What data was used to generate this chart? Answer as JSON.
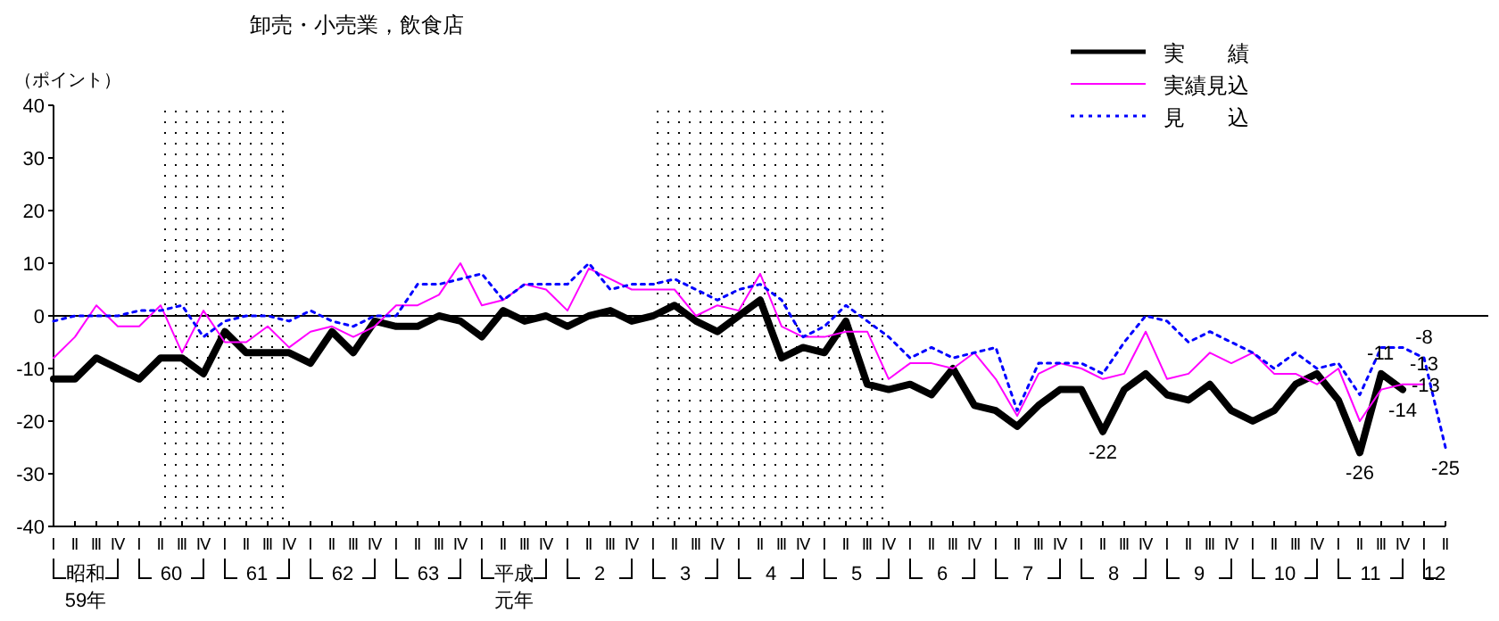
{
  "chart_data": {
    "type": "line",
    "title": "卸売・小売業，飲食店",
    "ylabel": "（ポイント）",
    "categories": [
      "Ⅰ",
      "Ⅱ",
      "Ⅲ",
      "Ⅳ",
      "Ⅰ",
      "Ⅱ",
      "Ⅲ",
      "Ⅳ",
      "Ⅰ",
      "Ⅱ",
      "Ⅲ",
      "Ⅳ",
      "Ⅰ",
      "Ⅱ",
      "Ⅲ",
      "Ⅳ",
      "Ⅰ",
      "Ⅱ",
      "Ⅲ",
      "Ⅳ",
      "Ⅰ",
      "Ⅱ",
      "Ⅲ",
      "Ⅳ",
      "Ⅰ",
      "Ⅱ",
      "Ⅲ",
      "Ⅳ",
      "Ⅰ",
      "Ⅱ",
      "Ⅲ",
      "Ⅳ",
      "Ⅰ",
      "Ⅱ",
      "Ⅲ",
      "Ⅳ",
      "Ⅰ",
      "Ⅱ",
      "Ⅲ",
      "Ⅳ",
      "Ⅰ",
      "Ⅱ",
      "Ⅲ",
      "Ⅳ",
      "Ⅰ",
      "Ⅱ",
      "Ⅲ",
      "Ⅳ",
      "Ⅰ",
      "Ⅱ",
      "Ⅲ",
      "Ⅳ",
      "Ⅰ",
      "Ⅱ",
      "Ⅲ",
      "Ⅳ",
      "Ⅰ",
      "Ⅱ",
      "Ⅲ",
      "Ⅳ",
      "Ⅰ",
      "Ⅱ",
      "Ⅲ",
      "Ⅳ",
      "Ⅰ",
      "Ⅱ"
    ],
    "series": [
      {
        "name": "実　　績",
        "color": "#000000",
        "line_style": "solid",
        "values": [
          -12,
          -12,
          -8,
          -10,
          -12,
          -8,
          -8,
          -11,
          -3,
          -7,
          -7,
          -7,
          -9,
          -3,
          -7,
          -1,
          -2,
          -2,
          0,
          -1,
          -4,
          1,
          -1,
          0,
          -2,
          0,
          1,
          -1,
          0,
          2,
          -1,
          -3,
          0,
          3,
          -8,
          -6,
          -7,
          -1,
          -13,
          -14,
          -13,
          -15,
          -10,
          -17,
          -18,
          -21,
          -17,
          -14,
          -14,
          -22,
          -14,
          -11,
          -15,
          -16,
          -13,
          -18,
          -20,
          -18,
          -13,
          -11,
          -16,
          -26,
          -11,
          -14,
          null,
          null
        ],
        "value_labels": [
          null,
          null,
          null,
          null,
          null,
          null,
          null,
          null,
          null,
          null,
          null,
          null,
          null,
          null,
          null,
          null,
          null,
          null,
          null,
          null,
          null,
          null,
          null,
          null,
          null,
          null,
          null,
          null,
          null,
          null,
          null,
          null,
          null,
          null,
          null,
          null,
          null,
          null,
          null,
          null,
          null,
          null,
          null,
          null,
          null,
          null,
          null,
          null,
          null,
          "-22",
          null,
          null,
          null,
          null,
          null,
          null,
          null,
          null,
          null,
          null,
          null,
          "-26",
          "-11",
          "-14",
          null,
          null
        ]
      },
      {
        "name": "実績見込",
        "color": "#ff00ff",
        "line_style": "solid",
        "values": [
          -8,
          -4,
          2,
          -2,
          -2,
          2,
          -7,
          1,
          -5,
          -5,
          -2,
          -6,
          -3,
          -2,
          -4,
          -2,
          2,
          2,
          4,
          10,
          2,
          3,
          6,
          5,
          1,
          9,
          7,
          5,
          5,
          5,
          0,
          2,
          1,
          8,
          -2,
          -4,
          -4,
          -3,
          -3,
          -12,
          -9,
          -9,
          -10,
          -7,
          -12,
          -19,
          -11,
          -9,
          -10,
          -12,
          -11,
          -3,
          -12,
          -11,
          -7,
          -9,
          -7,
          -11,
          -11,
          -13,
          -10,
          -20,
          -14,
          -13,
          -13,
          null
        ],
        "value_labels": [
          null,
          null,
          null,
          null,
          null,
          null,
          null,
          null,
          null,
          null,
          null,
          null,
          null,
          null,
          null,
          null,
          null,
          null,
          null,
          null,
          null,
          null,
          null,
          null,
          null,
          null,
          null,
          null,
          null,
          null,
          null,
          null,
          null,
          null,
          null,
          null,
          null,
          null,
          null,
          null,
          null,
          null,
          null,
          null,
          null,
          null,
          null,
          null,
          null,
          null,
          null,
          null,
          null,
          null,
          null,
          null,
          null,
          null,
          null,
          null,
          null,
          null,
          null,
          "-13",
          "-13",
          null
        ]
      },
      {
        "name": "見　　込",
        "color": "#0000ff",
        "line_style": "dotted",
        "values": [
          -1,
          0,
          0,
          0,
          1,
          1,
          2,
          -4,
          -1,
          0,
          0,
          -1,
          1,
          -1,
          -2,
          0,
          0,
          6,
          6,
          7,
          8,
          3,
          6,
          6,
          6,
          10,
          5,
          6,
          6,
          7,
          5,
          3,
          5,
          6,
          3,
          -4,
          -2,
          2,
          -1,
          -4,
          -8,
          -6,
          -8,
          -7,
          -6,
          -18,
          -9,
          -9,
          -9,
          -11,
          -5,
          0,
          -1,
          -5,
          -3,
          -5,
          -7,
          -10,
          -7,
          -10,
          -9,
          -15,
          -6,
          -6,
          -8,
          -25
        ],
        "value_labels": [
          null,
          null,
          null,
          null,
          null,
          null,
          null,
          null,
          null,
          null,
          null,
          null,
          null,
          null,
          null,
          null,
          null,
          null,
          null,
          null,
          null,
          null,
          null,
          null,
          null,
          null,
          null,
          null,
          null,
          null,
          null,
          null,
          null,
          null,
          null,
          null,
          null,
          null,
          null,
          null,
          null,
          null,
          null,
          null,
          null,
          null,
          null,
          null,
          null,
          null,
          null,
          null,
          null,
          null,
          null,
          null,
          null,
          null,
          null,
          null,
          null,
          null,
          null,
          null,
          "-8",
          "-25"
        ]
      }
    ],
    "ylim": [
      -40,
      40
    ],
    "yticks": [
      -40,
      -30,
      -20,
      -10,
      0,
      10,
      20,
      30,
      40
    ],
    "ref_lines": [
      {
        "axis": "y",
        "value": 0,
        "color": "#000000"
      }
    ],
    "annotations": [
      "昭和59年",
      "60",
      "61",
      "62",
      "63",
      "平成元年",
      "2",
      "3",
      "4",
      "5",
      "6",
      "7",
      "8",
      "9",
      "10",
      "11",
      "12"
    ],
    "grid": false,
    "marker": "none",
    "legend": "top right"
  }
}
